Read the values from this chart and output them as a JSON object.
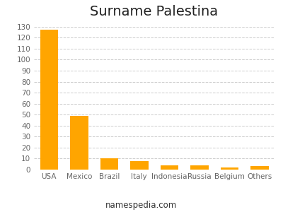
{
  "title": "Surname Palestina",
  "categories": [
    "USA",
    "Mexico",
    "Brazil",
    "Italy",
    "Indonesia",
    "Russia",
    "Belgium",
    "Others"
  ],
  "values": [
    127,
    49,
    10,
    8,
    4,
    4,
    2,
    3
  ],
  "bar_color": "#FFA500",
  "background_color": "#ffffff",
  "ylim": [
    0,
    135
  ],
  "yticks": [
    0,
    10,
    20,
    30,
    40,
    50,
    60,
    70,
    80,
    90,
    100,
    110,
    120,
    130
  ],
  "grid_color": "#cccccc",
  "title_fontsize": 14,
  "tick_fontsize": 7.5,
  "footer_text": "namespedia.com",
  "footer_fontsize": 8.5
}
